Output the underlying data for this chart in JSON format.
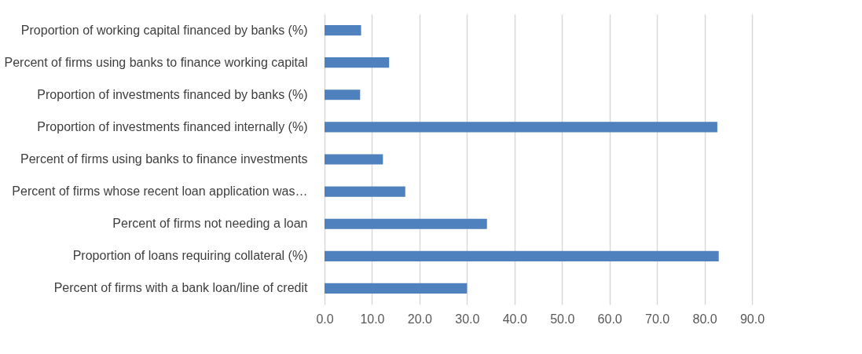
{
  "chart_data": {
    "type": "bar",
    "orientation": "horizontal",
    "categories": [
      "Proportion of working capital financed by banks (%)",
      "Percent of firms using banks to finance working capital",
      "Proportion of investments financed by banks (%)",
      "Proportion of investments financed internally (%)",
      "Percent of firms using banks to finance investments",
      "Percent of firms whose recent loan application was…",
      "Percent of firms not needing a loan",
      "Proportion of loans requiring collateral (%)",
      "Percent of firms with a bank loan/line of credit"
    ],
    "values": [
      7.7,
      13.6,
      7.5,
      82.7,
      12.3,
      17.0,
      34.2,
      83.0,
      30.0
    ],
    "color": "#4e81bd",
    "xlim": [
      0,
      90
    ],
    "xticks": [
      {
        "value": 0,
        "label": "0.0"
      },
      {
        "value": 10,
        "label": "10.0"
      },
      {
        "value": 20,
        "label": "20.0"
      },
      {
        "value": 30,
        "label": "30.0"
      },
      {
        "value": 40,
        "label": "40.0"
      },
      {
        "value": 50,
        "label": "50.0"
      },
      {
        "value": 60,
        "label": "60.0"
      },
      {
        "value": 70,
        "label": "70.0"
      },
      {
        "value": 80,
        "label": "80.0"
      },
      {
        "value": 90,
        "label": "90.0"
      }
    ],
    "grid": "x"
  }
}
